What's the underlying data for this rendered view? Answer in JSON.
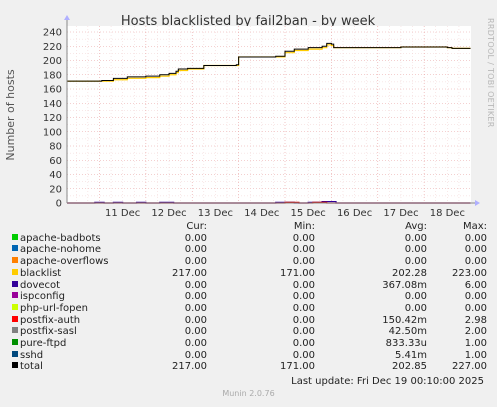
{
  "chart_data": {
    "type": "line",
    "title": "Hosts blacklisted by fail2ban - by week",
    "ylabel": "Number of hosts",
    "ylim": [
      0,
      240
    ],
    "yticks": [
      0,
      20,
      40,
      60,
      80,
      100,
      120,
      140,
      160,
      180,
      200,
      220,
      240
    ],
    "xlim": [
      10.3,
      19.01
    ],
    "xticks": [
      {
        "label": "11 Dec",
        "day": 11
      },
      {
        "label": "12 Dec",
        "day": 12
      },
      {
        "label": "13 Dec",
        "day": 13
      },
      {
        "label": "14 Dec",
        "day": 14
      },
      {
        "label": "15 Dec",
        "day": 15
      },
      {
        "label": "16 Dec",
        "day": 16
      },
      {
        "label": "17 Dec",
        "day": 17
      },
      {
        "label": "18 Dec",
        "day": 18
      }
    ],
    "grid": true,
    "series": [
      {
        "name": "total",
        "color": "#000000",
        "x": [
          10.3,
          10.9,
          11.05,
          11.3,
          11.6,
          12.0,
          12.3,
          12.5,
          12.65,
          12.7,
          12.9,
          13.2,
          13.25,
          13.3,
          13.5,
          13.75,
          13.95,
          14.0,
          14.2,
          14.5,
          14.8,
          15.0,
          15.2,
          15.5,
          15.8,
          15.9,
          16.0,
          16.05,
          16.5,
          17.0,
          17.5,
          18.0,
          18.5,
          18.6,
          19.0
        ],
        "y": [
          171,
          171,
          172,
          175,
          177,
          178,
          180,
          182,
          185,
          188,
          189,
          189,
          193,
          193,
          193,
          193,
          194,
          205,
          205,
          205,
          206,
          213,
          216,
          218,
          220,
          224,
          223,
          218,
          218,
          218,
          219,
          219,
          218,
          217,
          217
        ]
      },
      {
        "name": "blacklist",
        "color": "#ffcc00",
        "x": [
          10.3,
          10.9,
          11.05,
          11.3,
          11.6,
          12.0,
          12.3,
          12.5,
          12.65,
          12.7,
          12.9,
          13.2,
          13.25,
          13.3,
          13.5,
          13.75,
          13.95,
          14.0,
          14.2,
          14.5,
          14.8,
          15.0,
          15.2,
          15.5,
          15.8,
          15.9,
          16.0,
          16.05,
          16.5,
          17.0,
          17.5,
          18.0,
          18.5,
          18.6,
          19.0
        ],
        "y": [
          171,
          171,
          171,
          173,
          175,
          176,
          178,
          180,
          183,
          186,
          188,
          188,
          193,
          193,
          193,
          193,
          193,
          205,
          205,
          205,
          205,
          211,
          214,
          216,
          218,
          222,
          221,
          218,
          218,
          218,
          219,
          219,
          218,
          217,
          217
        ]
      },
      {
        "name": "dovecot",
        "color": "#330099",
        "x": [
          10.3,
          10.7,
          10.9,
          11.1,
          11.3,
          11.5,
          11.8,
          12.0,
          12.3,
          12.6,
          12.9,
          13.2,
          13.6,
          14.0,
          14.4,
          14.8,
          15.2,
          15.5,
          15.8,
          16.1,
          16.5,
          17.0,
          17.5,
          18.0,
          18.5,
          19.0
        ],
        "y": [
          0,
          0,
          1,
          0,
          1,
          0,
          1,
          0,
          1,
          0,
          0,
          0,
          0,
          0,
          0,
          1,
          0,
          1,
          2,
          0,
          0,
          0,
          0,
          0,
          0,
          0
        ]
      },
      {
        "name": "postfix-auth",
        "color": "#cc0000",
        "x": [
          10.3,
          14.9,
          15.0,
          15.3,
          15.6,
          15.9,
          16.2,
          16.5,
          19.0
        ],
        "y": [
          0,
          0,
          1,
          0,
          1,
          0,
          0,
          0,
          0
        ]
      }
    ]
  },
  "legend": {
    "headers": {
      "cur": "Cur:",
      "min": "Min:",
      "avg": "Avg:",
      "max": "Max:"
    },
    "rows": [
      {
        "name": "apache-badbots",
        "color": "#00cc00",
        "cur": "0.00",
        "min": "0.00",
        "avg": "0.00",
        "max": "0.00"
      },
      {
        "name": "apache-nohome",
        "color": "#0066b3",
        "cur": "0.00",
        "min": "0.00",
        "avg": "0.00",
        "max": "0.00"
      },
      {
        "name": "apache-overflows",
        "color": "#ff8000",
        "cur": "0.00",
        "min": "0.00",
        "avg": "0.00",
        "max": "0.00"
      },
      {
        "name": "blacklist",
        "color": "#ffcc00",
        "cur": "217.00",
        "min": "171.00",
        "avg": "202.28",
        "max": "223.00"
      },
      {
        "name": "dovecot",
        "color": "#330099",
        "cur": "0.00",
        "min": "0.00",
        "avg": "367.08m",
        "max": "6.00"
      },
      {
        "name": "ispconfig",
        "color": "#990099",
        "cur": "0.00",
        "min": "0.00",
        "avg": "0.00",
        "max": "0.00"
      },
      {
        "name": "php-url-fopen",
        "color": "#ccff00",
        "cur": "0.00",
        "min": "0.00",
        "avg": "0.00",
        "max": "0.00"
      },
      {
        "name": "postfix-auth",
        "color": "#ff0000",
        "cur": "0.00",
        "min": "0.00",
        "avg": "150.42m",
        "max": "2.98"
      },
      {
        "name": "postfix-sasl",
        "color": "#808080",
        "cur": "0.00",
        "min": "0.00",
        "avg": "42.50m",
        "max": "2.00"
      },
      {
        "name": "pure-ftpd",
        "color": "#008f00",
        "cur": "0.00",
        "min": "0.00",
        "avg": "833.33u",
        "max": "1.00"
      },
      {
        "name": "sshd",
        "color": "#00487d",
        "cur": "0.00",
        "min": "0.00",
        "avg": "5.41m",
        "max": "1.00"
      },
      {
        "name": "total",
        "color": "#000000",
        "cur": "217.00",
        "min": "171.00",
        "avg": "202.85",
        "max": "227.00"
      }
    ]
  },
  "last_update": "Last update: Fri Dec 19 00:10:00 2025",
  "side_label": "RRDTOOL / TOBI OETIKER",
  "footer": "Munin 2.0.76"
}
